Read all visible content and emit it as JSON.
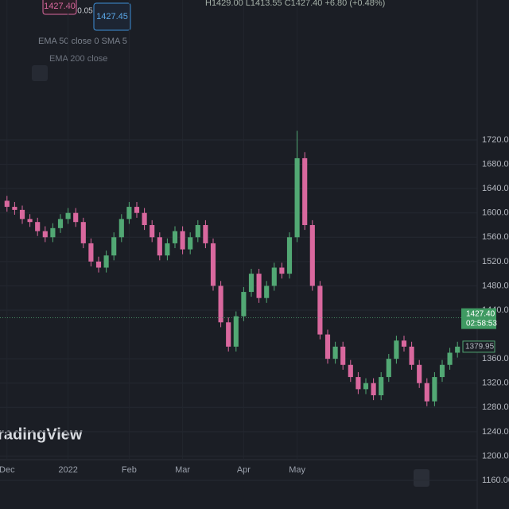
{
  "toolbar": {
    "sell": "1427.40",
    "spread": "0.05",
    "buy": "1427.45",
    "ohlc_legend": "H1429.00 L1413.55 C1427.40 +6.80 (+0.48%)",
    "indicator_1": "EMA 50 close 0 SMA 5",
    "indicator_2": "EMA 200 close",
    "watermark": "TradingView"
  },
  "chart_data": {
    "type": "candlestick",
    "categories": [
      "Dec",
      null,
      null,
      null,
      null,
      null,
      null,
      null,
      "2022",
      null,
      null,
      null,
      null,
      null,
      null,
      null,
      "Feb",
      null,
      null,
      null,
      null,
      null,
      null,
      "Mar",
      null,
      null,
      null,
      null,
      null,
      null,
      null,
      "Apr",
      null,
      null,
      null,
      null,
      null,
      null,
      "May",
      null,
      null,
      null,
      null,
      null,
      null,
      null,
      null,
      null,
      null,
      null,
      null,
      null,
      null,
      null,
      null,
      null,
      null,
      null,
      null,
      null
    ],
    "open": [
      1620,
      1610,
      1605,
      1590,
      1585,
      1570,
      1560,
      1575,
      1590,
      1600,
      1585,
      1550,
      1520,
      1510,
      1530,
      1560,
      1590,
      1610,
      1600,
      1580,
      1560,
      1530,
      1550,
      1570,
      1540,
      1560,
      1580,
      1550,
      1480,
      1420,
      1380,
      1430,
      1470,
      1500,
      1460,
      1480,
      1510,
      1500,
      1560,
      1690,
      1580,
      1480,
      1400,
      1360,
      1380,
      1350,
      1330,
      1310,
      1320,
      1300,
      1330,
      1360,
      1390,
      1380,
      1350,
      1320,
      1290,
      1330,
      1350,
      1370
    ],
    "high": [
      1628,
      1618,
      1612,
      1598,
      1592,
      1578,
      1583,
      1598,
      1608,
      1608,
      1592,
      1558,
      1528,
      1538,
      1568,
      1598,
      1618,
      1618,
      1608,
      1588,
      1568,
      1558,
      1578,
      1578,
      1568,
      1588,
      1588,
      1558,
      1488,
      1428,
      1438,
      1478,
      1508,
      1508,
      1488,
      1518,
      1518,
      1568,
      1735,
      1700,
      1588,
      1488,
      1408,
      1388,
      1388,
      1358,
      1338,
      1328,
      1328,
      1338,
      1368,
      1398,
      1398,
      1388,
      1358,
      1328,
      1338,
      1358,
      1378,
      1388
    ],
    "low": [
      1602,
      1597,
      1582,
      1577,
      1562,
      1552,
      1552,
      1567,
      1582,
      1577,
      1542,
      1512,
      1502,
      1502,
      1522,
      1552,
      1582,
      1592,
      1572,
      1552,
      1522,
      1522,
      1542,
      1532,
      1532,
      1552,
      1542,
      1472,
      1412,
      1372,
      1372,
      1422,
      1462,
      1452,
      1452,
      1472,
      1492,
      1492,
      1552,
      1572,
      1472,
      1392,
      1352,
      1352,
      1342,
      1322,
      1302,
      1302,
      1292,
      1292,
      1322,
      1352,
      1372,
      1342,
      1312,
      1282,
      1282,
      1322,
      1342,
      1362
    ],
    "close": [
      1610,
      1605,
      1590,
      1585,
      1570,
      1560,
      1575,
      1590,
      1600,
      1585,
      1550,
      1520,
      1510,
      1530,
      1560,
      1590,
      1610,
      1600,
      1580,
      1560,
      1530,
      1550,
      1570,
      1540,
      1560,
      1580,
      1550,
      1480,
      1420,
      1380,
      1430,
      1470,
      1500,
      1460,
      1480,
      1510,
      1500,
      1560,
      1690,
      1580,
      1480,
      1400,
      1360,
      1380,
      1350,
      1330,
      1310,
      1320,
      1300,
      1330,
      1360,
      1390,
      1380,
      1350,
      1320,
      1290,
      1330,
      1350,
      1370,
      1380
    ],
    "up_color": "#52a874",
    "down_color": "#d9689e",
    "ylim": [
      1160,
      1720
    ],
    "yticks": [
      {
        "value": 1160,
        "label": "1160.00"
      },
      {
        "value": 1200,
        "label": "1200.00"
      },
      {
        "value": 1240,
        "label": "1240.00"
      },
      {
        "value": 1280,
        "label": "1280.00"
      },
      {
        "value": 1320,
        "label": "1320.00"
      },
      {
        "value": 1360,
        "label": "1360.00"
      },
      {
        "value": 1440,
        "label": "1440.00"
      },
      {
        "value": 1480,
        "label": "1480.00"
      },
      {
        "value": 1520,
        "label": "1520.00"
      },
      {
        "value": 1560,
        "label": "1560.00"
      },
      {
        "value": 1600,
        "label": "1600.00"
      },
      {
        "value": 1640,
        "label": "1640.00"
      },
      {
        "value": 1680,
        "label": "1680.00"
      },
      {
        "value": 1720,
        "label": "1720.00"
      }
    ],
    "grid": true,
    "last_price": {
      "value": 1427.4,
      "label": "1427.40",
      "countdown": "02:58:53"
    },
    "marker_price": {
      "value": 1379.95,
      "label": "1379.95"
    }
  }
}
